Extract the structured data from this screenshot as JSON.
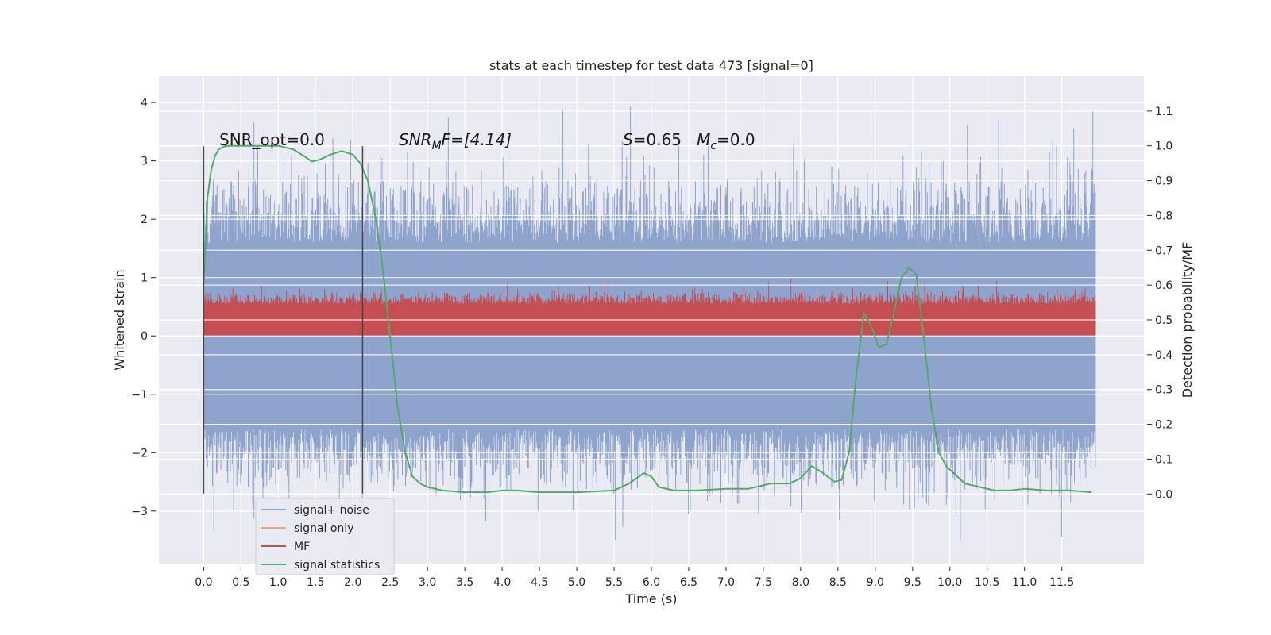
{
  "chart_data": {
    "type": "line",
    "title": "stats at each timestep for test data 473 [signal=0]",
    "xlabel": "Time (s)",
    "ylabel_left": "Whitened strain",
    "ylabel_right": "Detection probability/MF",
    "xlim": [
      -0.6,
      12.6
    ],
    "ylim_left": [
      -3.9,
      4.45
    ],
    "ylim_right": [
      -0.2,
      1.2
    ],
    "x_ticks": [
      "0.0",
      "0.5",
      "1.0",
      "1.5",
      "2.0",
      "2.5",
      "3.0",
      "3.5",
      "4.0",
      "4.5",
      "5.0",
      "5.5",
      "6.0",
      "6.5",
      "7.0",
      "7.5",
      "8.0",
      "8.5",
      "9.0",
      "9.5",
      "10.0",
      "10.5",
      "11.0",
      "11.5"
    ],
    "y_ticks_left": [
      "−3",
      "−2",
      "−1",
      "0",
      "1",
      "2",
      "3",
      "4"
    ],
    "y_ticks_right": [
      "0.0",
      "0.1",
      "0.2",
      "0.3",
      "0.4",
      "0.5",
      "0.6",
      "0.7",
      "0.8",
      "0.9",
      "1.0",
      "1.1"
    ],
    "grid": true,
    "legend_position": "lower-left",
    "annotations": {
      "snr_opt": "SNR_opt=0.0",
      "snr_mf_prefix": "SNR",
      "snr_mf_sub": "M",
      "snr_mf_suffix": "F=[4.14]",
      "s_prefix": "S",
      "s_value": "=0.65   ",
      "mc_prefix": "M",
      "mc_sub": "c",
      "mc_value": "=0.0"
    },
    "vertical_markers_x": [
      0.0,
      2.13
    ],
    "series": [
      {
        "name": "signal+ noise",
        "color": "#8fa4cc",
        "description_range": [
          -3.5,
          4.1
        ],
        "x_range": [
          0.0,
          11.95
        ],
        "band_left": [
          -1.5,
          1.5
        ]
      },
      {
        "name": "signal only",
        "color": "#e8a588",
        "values": []
      },
      {
        "name": "MF",
        "color": "#c44e52",
        "band_left": [
          0.0,
          1.0
        ]
      },
      {
        "name": "signal statistics",
        "color": "#55a868",
        "x": [
          0.0,
          0.05,
          0.1,
          0.15,
          0.2,
          0.3,
          0.5,
          0.8,
          1.0,
          1.2,
          1.35,
          1.45,
          1.55,
          1.7,
          1.85,
          2.0,
          2.1,
          2.2,
          2.3,
          2.4,
          2.5,
          2.6,
          2.7,
          2.8,
          2.9,
          3.0,
          3.2,
          3.5,
          3.8,
          4.0,
          4.2,
          4.5,
          5.0,
          5.5,
          5.7,
          5.9,
          6.0,
          6.1,
          6.3,
          6.6,
          7.0,
          7.3,
          7.6,
          7.85,
          8.0,
          8.15,
          8.3,
          8.45,
          8.55,
          8.65,
          8.75,
          8.85,
          8.95,
          9.05,
          9.15,
          9.25,
          9.35,
          9.45,
          9.55,
          9.65,
          9.75,
          9.85,
          9.95,
          10.05,
          10.2,
          10.4,
          10.6,
          10.8,
          11.0,
          11.3,
          11.6,
          11.9
        ],
        "y": [
          0.6,
          0.85,
          0.93,
          0.97,
          0.99,
          1.0,
          1.0,
          1.0,
          1.0,
          0.99,
          0.97,
          0.955,
          0.96,
          0.975,
          0.985,
          0.975,
          0.95,
          0.9,
          0.8,
          0.65,
          0.45,
          0.25,
          0.12,
          0.05,
          0.03,
          0.02,
          0.01,
          0.005,
          0.005,
          0.01,
          0.01,
          0.005,
          0.005,
          0.01,
          0.03,
          0.06,
          0.05,
          0.02,
          0.01,
          0.01,
          0.015,
          0.015,
          0.03,
          0.03,
          0.045,
          0.08,
          0.06,
          0.035,
          0.04,
          0.12,
          0.35,
          0.52,
          0.48,
          0.42,
          0.43,
          0.52,
          0.62,
          0.65,
          0.63,
          0.45,
          0.25,
          0.12,
          0.08,
          0.06,
          0.03,
          0.02,
          0.01,
          0.01,
          0.015,
          0.01,
          0.01,
          0.005
        ]
      }
    ]
  }
}
